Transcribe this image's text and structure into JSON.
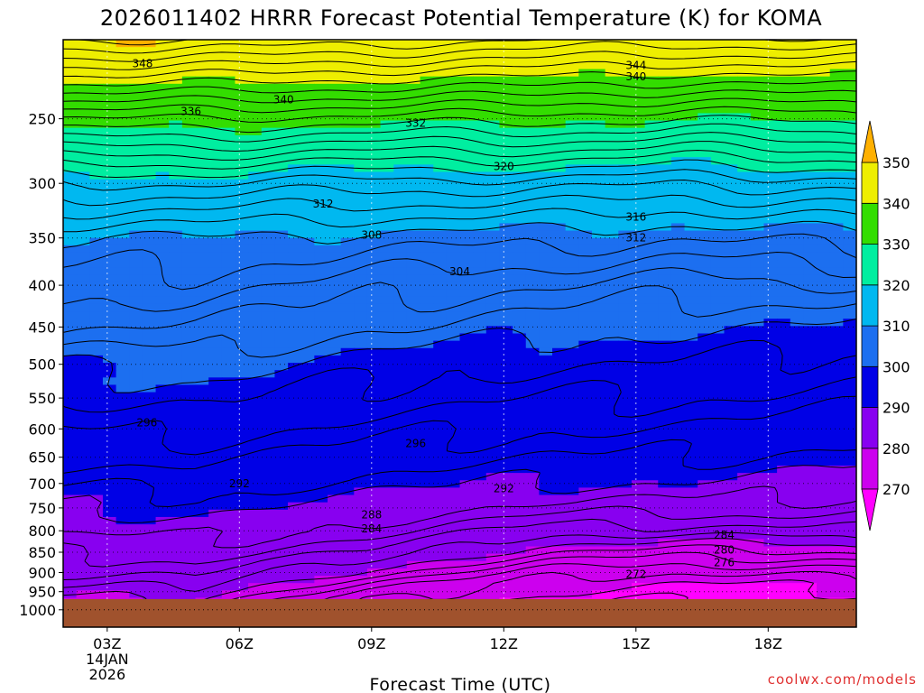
{
  "chart_data": {
    "type": "heatmap",
    "title": "2026011402 HRRR Forecast Potential Temperature (K) for KOMA",
    "xlabel": "Forecast Time (UTC)",
    "credit": "coolwx.com/models",
    "x_hours": [
      2,
      20
    ],
    "x_ticks": [
      {
        "hour": 3,
        "label": "03Z",
        "sub": [
          "14JAN",
          "2026"
        ]
      },
      {
        "hour": 6,
        "label": "06Z",
        "sub": []
      },
      {
        "hour": 9,
        "label": "09Z",
        "sub": []
      },
      {
        "hour": 12,
        "label": "12Z",
        "sub": []
      },
      {
        "hour": 15,
        "label": "15Z",
        "sub": []
      },
      {
        "hour": 18,
        "label": "18Z",
        "sub": []
      }
    ],
    "y_scale": "log-pressure",
    "y_range_hpa": [
      1050,
      200
    ],
    "y_ticks": [
      250,
      300,
      350,
      400,
      450,
      500,
      550,
      600,
      650,
      700,
      750,
      800,
      850,
      900,
      950,
      1000
    ],
    "ground_level_hpa": 970,
    "colorbar": {
      "ticks": [
        270,
        280,
        290,
        300,
        310,
        320,
        330,
        340,
        350
      ],
      "colors": [
        {
          "from": 260,
          "to": 270,
          "color": "#ff00ff"
        },
        {
          "from": 270,
          "to": 280,
          "color": "#cc00ee"
        },
        {
          "from": 280,
          "to": 290,
          "color": "#8800f0"
        },
        {
          "from": 290,
          "to": 300,
          "color": "#0000e6"
        },
        {
          "from": 300,
          "to": 310,
          "color": "#1c6ff0"
        },
        {
          "from": 310,
          "to": 320,
          "color": "#00b8f0"
        },
        {
          "from": 320,
          "to": 330,
          "color": "#00eea0"
        },
        {
          "from": 330,
          "to": 340,
          "color": "#33dd00"
        },
        {
          "from": 340,
          "to": 350,
          "color": "#eeee00"
        },
        {
          "from": 350,
          "to": 360,
          "color": "#ffb000"
        }
      ]
    },
    "surface_color": "#a0522d",
    "profile_hours": [
      2,
      5,
      9,
      13,
      16,
      20
    ],
    "profile_levels_hpa": [
      1000,
      975,
      950,
      925,
      900,
      850,
      800,
      750,
      700,
      650,
      600,
      550,
      500,
      450,
      400,
      350,
      300,
      250,
      200
    ],
    "theta_profiles_K": [
      [
        279,
        279,
        281,
        283,
        284,
        286,
        288,
        290,
        292,
        294,
        296,
        298,
        300,
        304,
        307,
        310,
        318,
        332,
        350
      ],
      [
        279,
        279,
        281,
        283,
        285,
        287,
        289,
        291,
        293,
        295,
        297,
        299,
        301,
        304,
        307,
        310,
        318,
        332,
        350
      ],
      [
        271,
        272,
        274,
        276,
        279,
        284,
        287,
        289,
        291,
        293,
        295,
        297,
        299,
        302,
        305,
        309,
        317,
        331,
        349
      ],
      [
        268,
        269,
        270,
        271,
        273,
        278,
        283,
        287,
        290,
        292,
        294,
        296,
        298,
        301,
        304,
        309,
        317,
        331,
        348
      ],
      [
        267,
        268,
        269,
        270,
        272,
        277,
        283,
        287,
        290,
        292,
        294,
        296,
        298,
        300,
        303,
        308,
        316,
        330,
        347
      ],
      [
        268,
        269,
        270,
        271,
        273,
        278,
        284,
        287,
        289,
        291,
        293,
        295,
        297,
        300,
        304,
        309,
        317,
        331,
        348
      ]
    ],
    "contour_interval_K": 2,
    "contour_labels": [
      {
        "value": "348",
        "hour": 3.8,
        "hpa": 214
      },
      {
        "value": "344",
        "hour": 15.0,
        "hpa": 215
      },
      {
        "value": "340",
        "hour": 15.0,
        "hpa": 222
      },
      {
        "value": "340",
        "hour": 7.0,
        "hpa": 237
      },
      {
        "value": "336",
        "hour": 4.9,
        "hpa": 245
      },
      {
        "value": "332",
        "hour": 10.0,
        "hpa": 253
      },
      {
        "value": "320",
        "hour": 12.0,
        "hpa": 286
      },
      {
        "value": "312",
        "hour": 7.9,
        "hpa": 318
      },
      {
        "value": "316",
        "hour": 15.0,
        "hpa": 330
      },
      {
        "value": "308",
        "hour": 9.0,
        "hpa": 347
      },
      {
        "value": "312",
        "hour": 15.0,
        "hpa": 350
      },
      {
        "value": "304",
        "hour": 11.0,
        "hpa": 385
      },
      {
        "value": "296",
        "hour": 3.9,
        "hpa": 590
      },
      {
        "value": "296",
        "hour": 10.0,
        "hpa": 625
      },
      {
        "value": "292",
        "hour": 6.0,
        "hpa": 700
      },
      {
        "value": "292",
        "hour": 12.0,
        "hpa": 710
      },
      {
        "value": "288",
        "hour": 9.0,
        "hpa": 765
      },
      {
        "value": "284",
        "hour": 9.0,
        "hpa": 795
      },
      {
        "value": "284",
        "hour": 17.0,
        "hpa": 810
      },
      {
        "value": "280",
        "hour": 17.0,
        "hpa": 845
      },
      {
        "value": "276",
        "hour": 17.0,
        "hpa": 875
      },
      {
        "value": "272",
        "hour": 15.0,
        "hpa": 905
      }
    ]
  }
}
